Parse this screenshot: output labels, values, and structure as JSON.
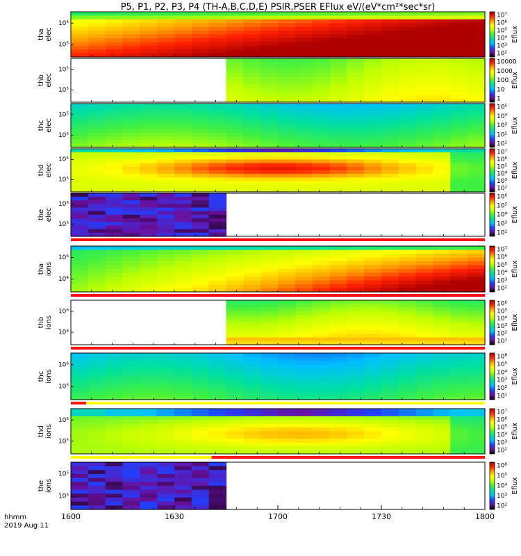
{
  "title": "P5, P1, P2, P3, P4 (TH-A,B,C,D,E) PSIR,PSER EFlux eV/(eV*cm²*sec*sr)",
  "x_axis": {
    "format_label": "hhmm",
    "date_label": "2019 Aug 11",
    "ticks": [
      "1600",
      "1630",
      "1700",
      "1730",
      "1800"
    ]
  },
  "colorbar_title": "Eflux",
  "colors": {
    "colormap": [
      "#000000",
      "#6a10a0",
      "#2040ff",
      "#00c0ff",
      "#00e0a0",
      "#40f040",
      "#c0ff00",
      "#ffff00",
      "#ffa000",
      "#ff2000",
      "#b00000"
    ],
    "status_red": "#ff1010",
    "status_yellow": "#ffff00"
  },
  "chart_data": [
    {
      "type": "heatmap",
      "probe": "tha",
      "species": "elec",
      "panel_label": [
        "tha",
        "elec"
      ],
      "y_ticks": [
        "10⁵",
        "10⁵"
      ],
      "colorbar_ticks": [
        "10⁷",
        "10⁶",
        "10⁵",
        "10⁴",
        "10³",
        "10²"
      ],
      "data_start": 0.0,
      "data_end": 1.0,
      "pattern": "strong-red",
      "status_bar": null
    },
    {
      "type": "heatmap",
      "probe": "thb",
      "species": "elec",
      "panel_label": [
        "thb",
        "elec"
      ],
      "y_ticks": [
        "10⁵",
        "10⁵"
      ],
      "colorbar_ticks": [
        "10000",
        "1000",
        "100",
        "10",
        "1"
      ],
      "data_start": 0.36,
      "data_end": 1.0,
      "pattern": "green-yellow",
      "status_bar": null
    },
    {
      "type": "heatmap",
      "probe": "thc",
      "species": "elec",
      "panel_label": [
        "thc",
        "elec"
      ],
      "y_ticks": [
        "10⁵",
        "10⁵"
      ],
      "colorbar_ticks": [
        "10⁵",
        "10⁴",
        "10³",
        "10²",
        "10¹"
      ],
      "data_start": 0.0,
      "data_end": 1.0,
      "pattern": "cyan-green",
      "status_bar": null
    },
    {
      "type": "heatmap",
      "probe": "thd",
      "species": "elec",
      "panel_label": [
        "thd",
        "elec"
      ],
      "y_ticks": [
        "10⁵",
        "10⁵"
      ],
      "colorbar_ticks": [
        "10⁷",
        "10⁶",
        "10⁵",
        "10⁴",
        "10³",
        "10²"
      ],
      "data_start": 0.0,
      "data_end": 1.0,
      "pattern": "orange-bulge",
      "status_bar": null
    },
    {
      "type": "heatmap",
      "probe": "the",
      "species": "elec",
      "panel_label": [
        "the",
        "elec"
      ],
      "y_ticks": [
        "10⁶",
        "10⁵"
      ],
      "colorbar_ticks": [
        "10⁶",
        "10⁵",
        "10⁴",
        "10³",
        "10²"
      ],
      "data_start": 0.0,
      "data_end": 0.36,
      "pattern": "noise",
      "status_bar": "red"
    },
    {
      "type": "heatmap",
      "probe": "tha",
      "species": "ions",
      "panel_label": [
        "tha",
        "ions"
      ],
      "y_ticks": [
        "10⁶",
        "10⁴"
      ],
      "colorbar_ticks": [
        "10⁷",
        "10⁶",
        "10⁵",
        "10⁴",
        "10³",
        "10²"
      ],
      "data_start": 0.0,
      "data_end": 1.0,
      "pattern": "ramp-red",
      "status_bar": "red"
    },
    {
      "type": "heatmap",
      "probe": "thb",
      "species": "ions",
      "panel_label": [
        "thb",
        "ions"
      ],
      "y_ticks": [
        "10⁶",
        "10³"
      ],
      "colorbar_ticks": [
        "10⁶",
        "10⁵",
        "10⁴",
        "10³",
        "10²",
        "10¹"
      ],
      "data_start": 0.36,
      "data_end": 1.0,
      "pattern": "bottom-orange",
      "status_bar": "red"
    },
    {
      "type": "heatmap",
      "probe": "thc",
      "species": "ions",
      "panel_label": [
        "thc",
        "ions"
      ],
      "y_ticks": [
        "10⁶",
        "10⁵"
      ],
      "colorbar_ticks": [
        "10⁶",
        "10⁵",
        "10⁴",
        "10³",
        "10²",
        "10¹"
      ],
      "data_start": 0.0,
      "data_end": 1.0,
      "pattern": "cyan-blue",
      "status_bar": "red-short-yellow"
    },
    {
      "type": "heatmap",
      "probe": "thd",
      "species": "ions",
      "panel_label": [
        "thd",
        "ions"
      ],
      "y_ticks": [
        "10⁶",
        "10⁵"
      ],
      "colorbar_ticks": [
        "10⁷",
        "10⁶",
        "10⁵",
        "10⁴",
        "10³",
        "10²"
      ],
      "data_start": 0.0,
      "data_end": 1.0,
      "pattern": "yellow-bulge",
      "status_bar": "yellow-red"
    },
    {
      "type": "heatmap",
      "probe": "the",
      "species": "ions",
      "panel_label": [
        "the",
        "ions"
      ],
      "y_ticks": [
        "10⁵",
        "10⁵"
      ],
      "colorbar_ticks": [
        "10⁶",
        "10⁵",
        "10⁴",
        "10³",
        "10²"
      ],
      "data_start": 0.0,
      "data_end": 0.36,
      "pattern": "noise",
      "status_bar": null
    }
  ]
}
